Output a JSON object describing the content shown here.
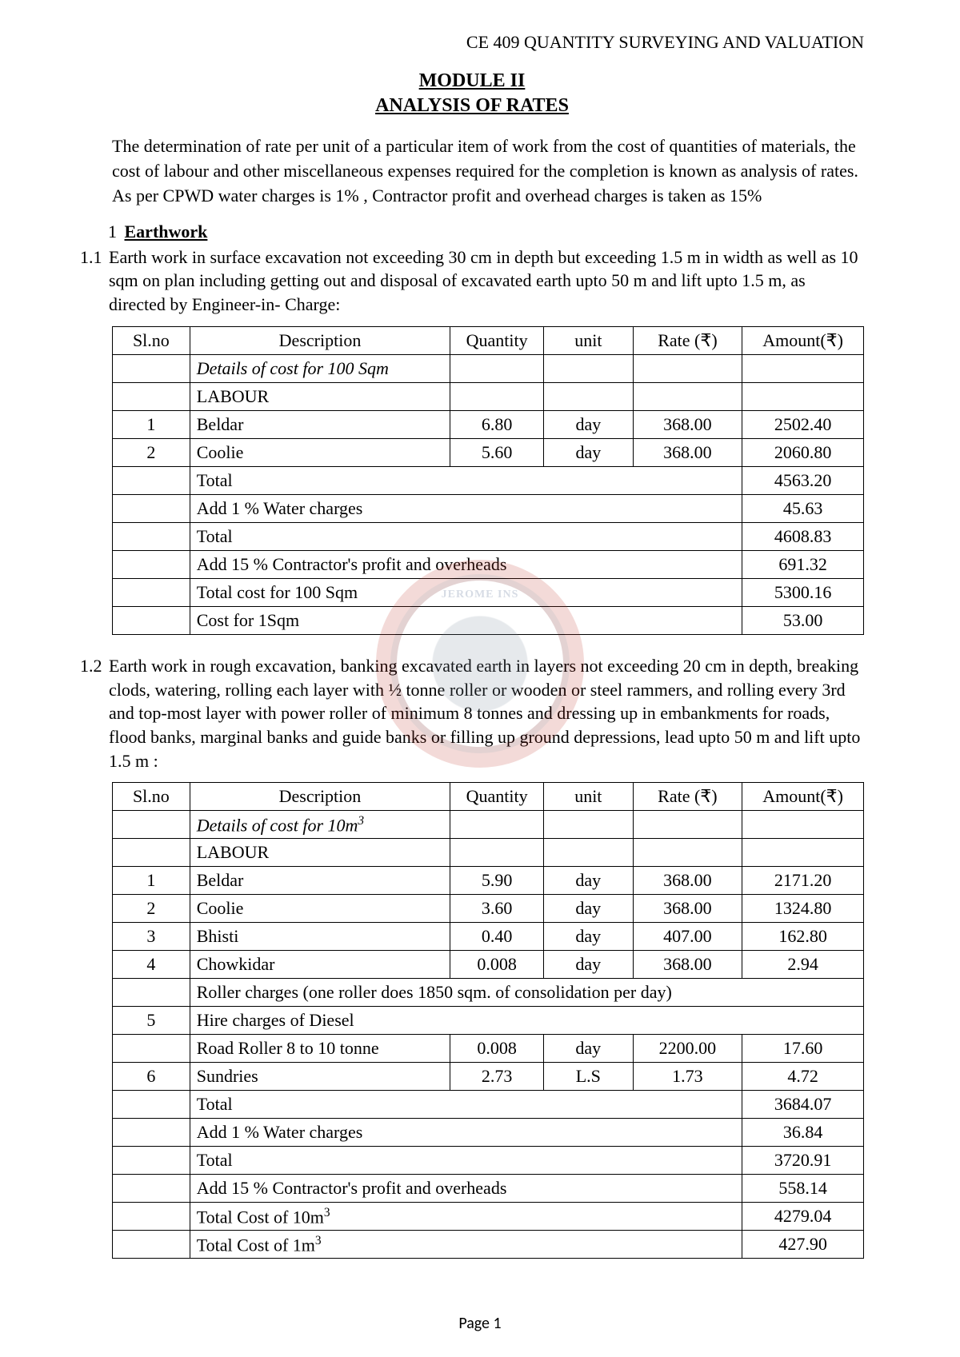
{
  "header": "CE 409 QUANTITY SURVEYING AND VALUATION",
  "module_line1": "MODULE II",
  "module_line2": "ANALYSIS OF RATES",
  "intro": "The determination of rate per unit of a particular item of work from the cost of quantities of materials, the cost of labour and other miscellaneous expenses  required for the completion is known as analysis of rates. As per CPWD water charges is 1% , Contractor profit and overhead charges is taken as 15%",
  "section1_num": "1",
  "section1_title": "Earthwork",
  "item11_num": "1.1",
  "item11_text": "Earth work in surface excavation not exceeding 30 cm in depth but exceeding 1.5 m in width as well as 10 sqm on plan including getting out and disposal of excavated earth upto 50 m and lift upto 1.5 m, as directed by Engineer-in- Charge:",
  "cols": {
    "slno": "Sl.no",
    "desc": "Description",
    "qty": "Quantity",
    "unit": "unit",
    "rate": "Rate (₹)",
    "amt": "Amount(₹)"
  },
  "t1": {
    "details": "Details of cost for 100 Sqm",
    "labour": "LABOUR",
    "r1": {
      "sl": "1",
      "desc": "Beldar",
      "qty": "6.80",
      "unit": "day",
      "rate": "368.00",
      "amt": "2502.40"
    },
    "r2": {
      "sl": "2",
      "desc": "Coolie",
      "qty": "5.60",
      "unit": "day",
      "rate": "368.00",
      "amt": "2060.80"
    },
    "total1_label": "Total",
    "total1_amt": "4563.20",
    "water_label": "Add 1 % Water charges",
    "water_amt": "45.63",
    "total2_label": "Total",
    "total2_amt": "4608.83",
    "cpoh_label": "Add 15 % Contractor's profit and overheads",
    "cpoh_amt": "691.32",
    "tcost_label": "Total cost for 100 Sqm",
    "tcost_amt": "5300.16",
    "unit_label": "Cost for 1Sqm",
    "unit_amt": "53.00"
  },
  "item12_num": "1.2",
  "item12_text": "Earth work in rough excavation, banking excavated earth in layers not exceeding 20 cm in depth, breaking clods, watering, rolling each layer with ½ tonne roller or wooden or steel rammers, and rolling every 3rd and top-most layer with power  roller of minimum 8 tonnes and dressing up in embankments for roads, flood banks, marginal banks and guide banks or filling up ground depressions, lead upto 50 m and lift upto 1.5 m :",
  "t2": {
    "details": "Details of cost for 10m",
    "details_sup": "3",
    "labour": "LABOUR",
    "r1": {
      "sl": "1",
      "desc": "Beldar",
      "qty": "5.90",
      "unit": "day",
      "rate": "368.00",
      "amt": "2171.20"
    },
    "r2": {
      "sl": "2",
      "desc": "Coolie",
      "qty": "3.60",
      "unit": "day",
      "rate": "368.00",
      "amt": "1324.80"
    },
    "r3": {
      "sl": "3",
      "desc": "Bhisti",
      "qty": "0.40",
      "unit": "day",
      "rate": "407.00",
      "amt": "162.80"
    },
    "r4": {
      "sl": "4",
      "desc": "Chowkidar",
      "qty": "0.008",
      "unit": "day",
      "rate": "368.00",
      "amt": "2.94"
    },
    "roller_note": "Roller charges (one roller does 1850 sqm. of consolidation per day)",
    "r5_sl": "5",
    "r5_desc": "Hire charges of Diesel",
    "r5b_desc": " Road Roller 8 to 10 tonne",
    "r5b_qty": "0.008",
    "r5b_unit": "day",
    "r5b_rate": "2200.00",
    "r5b_amt": "17.60",
    "r6": {
      "sl": "6",
      "desc": "Sundries",
      "qty": "2.73",
      "unit": "L.S",
      "rate": "1.73",
      "amt": "4.72"
    },
    "total1_label": "Total",
    "total1_amt": "3684.07",
    "water_label": "Add 1 % Water charges",
    "water_amt": "36.84",
    "total2_label": "Total",
    "total2_amt": "3720.91",
    "cpoh_label": "Add 15 % Contractor's profit and overheads",
    "cpoh_amt": "558.14",
    "tcost_label": "Total Cost of 10m",
    "tcost_sup": "3",
    "tcost_amt": "4279.04",
    "unit_label": "Total Cost of 1m",
    "unit_sup": "3",
    "unit_amt": "427.90"
  },
  "footer": "Page 1",
  "watermark_text": "JEROME INS"
}
